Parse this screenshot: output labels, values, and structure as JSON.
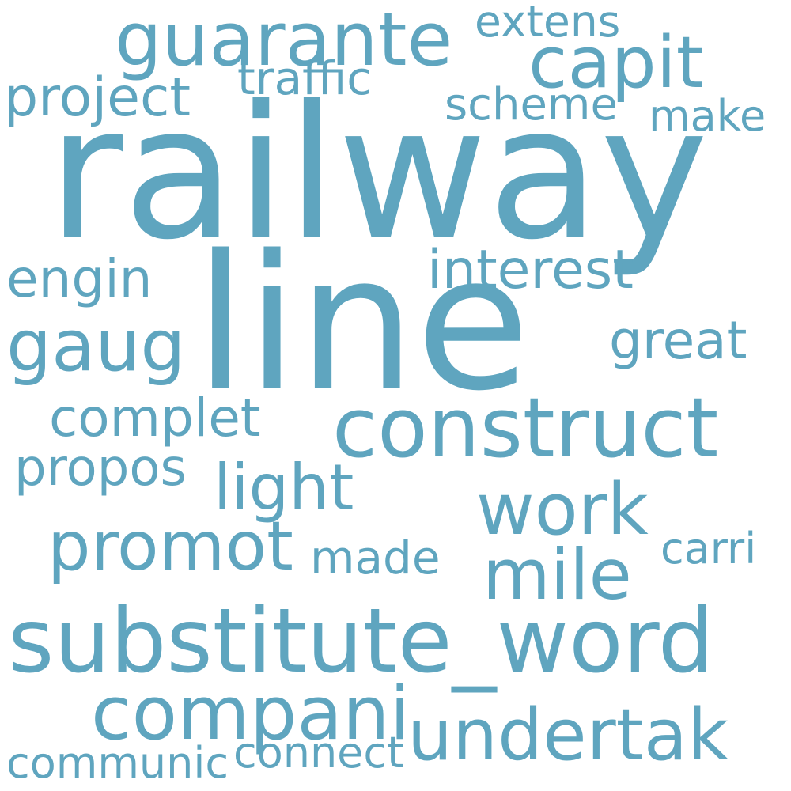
{
  "words": [
    {
      "text": "railway",
      "weight": 1.0
    },
    {
      "text": "line",
      "weight": 0.8
    },
    {
      "text": "substitute_word",
      "weight": 0.45
    },
    {
      "text": "construct",
      "weight": 0.42
    },
    {
      "text": "guarante",
      "weight": 0.38
    },
    {
      "text": "compani",
      "weight": 0.38
    },
    {
      "text": "undertak",
      "weight": 0.37
    },
    {
      "text": "capit",
      "weight": 0.36
    },
    {
      "text": "gaug",
      "weight": 0.36
    },
    {
      "text": "work",
      "weight": 0.36
    },
    {
      "text": "mile",
      "weight": 0.35
    },
    {
      "text": "promot",
      "weight": 0.35
    },
    {
      "text": "light",
      "weight": 0.33
    },
    {
      "text": "project",
      "weight": 0.28
    },
    {
      "text": "interest",
      "weight": 0.28
    },
    {
      "text": "engin",
      "weight": 0.27
    },
    {
      "text": "great",
      "weight": 0.27
    },
    {
      "text": "complet",
      "weight": 0.27
    },
    {
      "text": "propos",
      "weight": 0.26
    },
    {
      "text": "traffic",
      "weight": 0.24
    },
    {
      "text": "scheme",
      "weight": 0.24
    },
    {
      "text": "made",
      "weight": 0.24
    },
    {
      "text": "extens",
      "weight": 0.23
    },
    {
      "text": "make",
      "weight": 0.23
    },
    {
      "text": "carri",
      "weight": 0.22
    },
    {
      "text": "communic",
      "weight": 0.22
    },
    {
      "text": "connect",
      "weight": 0.22
    }
  ],
  "colors": {
    "word": "#5fa5bf",
    "background": "#ffffff"
  }
}
